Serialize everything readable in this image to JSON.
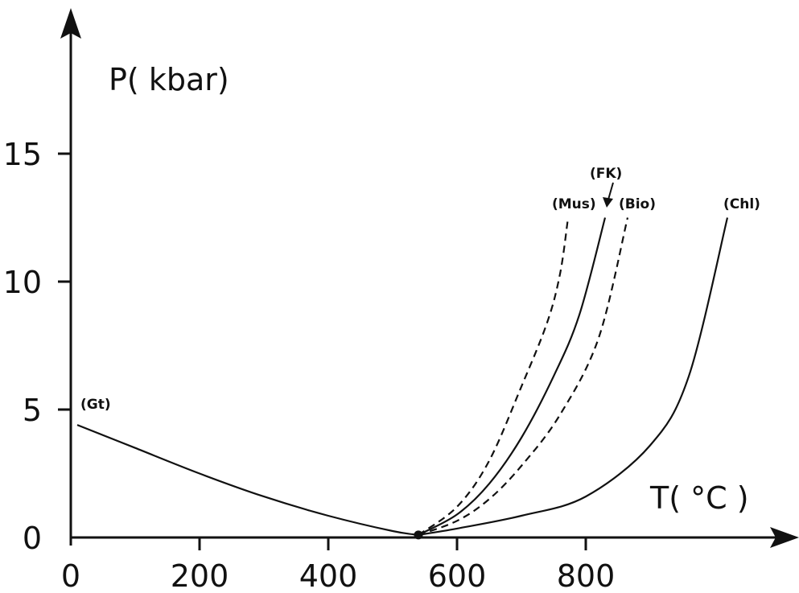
{
  "chart_data": {
    "type": "line",
    "title": "",
    "xlabel": "T( °C )",
    "ylabel": "P( kbar)",
    "xlim": [
      0,
      1050
    ],
    "ylim": [
      0,
      20
    ],
    "x_ticks": [
      {
        "value": 0,
        "label": "0"
      },
      {
        "value": 200,
        "label": "200"
      },
      {
        "value": 400,
        "label": "400"
      },
      {
        "value": 600,
        "label": "600"
      },
      {
        "value": 800,
        "label": "800"
      }
    ],
    "y_ticks": [
      {
        "value": 0,
        "label": "0"
      },
      {
        "value": 5,
        "label": "5"
      },
      {
        "value": 10,
        "label": "10"
      },
      {
        "value": 15,
        "label": "15"
      }
    ],
    "grid": false,
    "point": {
      "x": 540,
      "y": 0.1
    },
    "series": [
      {
        "name": "(Gt)",
        "style": "solid",
        "x": [
          10,
          100,
          200,
          300,
          400,
          500,
          540
        ],
        "y": [
          4.4,
          3.5,
          2.5,
          1.6,
          0.85,
          0.25,
          0.1
        ]
      },
      {
        "name": "(Mus)",
        "style": "dashed",
        "x": [
          540,
          600,
          650,
          700,
          740,
          760,
          772
        ],
        "y": [
          0.1,
          1.2,
          3.0,
          5.9,
          8.4,
          10.3,
          12.4
        ]
      },
      {
        "name": "(FK)",
        "style": "solid",
        "x": [
          540,
          600,
          650,
          700,
          750,
          790,
          830
        ],
        "y": [
          0.1,
          0.9,
          2.1,
          3.9,
          6.3,
          8.7,
          12.5
        ]
      },
      {
        "name": "(Bio)",
        "style": "dashed",
        "x": [
          540,
          600,
          650,
          700,
          760,
          820,
          865
        ],
        "y": [
          0.1,
          0.65,
          1.5,
          2.8,
          4.8,
          7.8,
          12.5
        ]
      },
      {
        "name": "(Chl)",
        "style": "solid",
        "x": [
          540,
          600,
          700,
          800,
          900,
          960,
          1020
        ],
        "y": [
          0.1,
          0.35,
          0.85,
          1.6,
          3.6,
          6.3,
          12.5
        ]
      }
    ],
    "annotations": [
      {
        "text": "(Gt)",
        "target": "(Gt)"
      },
      {
        "text": "(Mus)",
        "target": "(Mus)"
      },
      {
        "text": "(FK)",
        "target": "(FK)"
      },
      {
        "text": "(Bio)",
        "target": "(Bio)"
      },
      {
        "text": "(Chl)",
        "target": "(Chl)"
      }
    ]
  }
}
